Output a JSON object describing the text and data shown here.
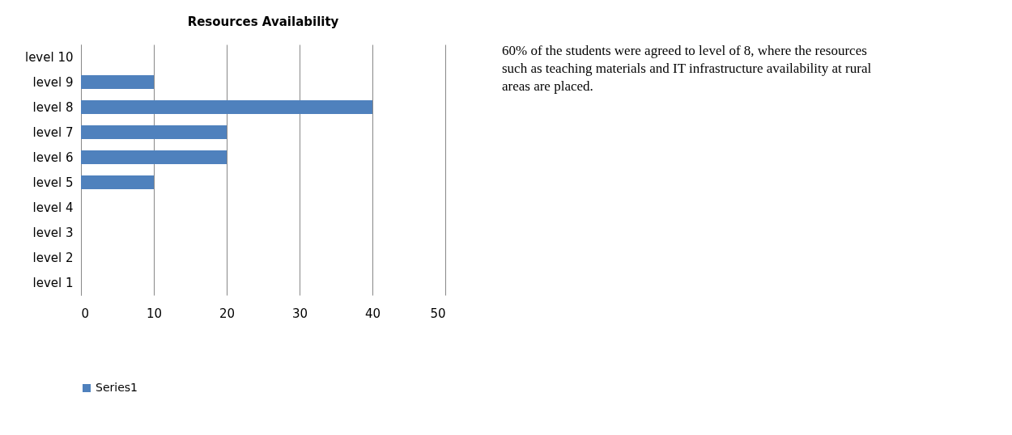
{
  "chart_data": {
    "type": "bar",
    "orientation": "horizontal",
    "title": "Resources Availability",
    "categories": [
      "level 10",
      "level 9",
      "level 8",
      "level 7",
      "level 6",
      "level 5",
      "level 4",
      "level 3",
      "level 2",
      "level 1"
    ],
    "series": [
      {
        "name": "Series1",
        "color": "#4f81bd",
        "values": [
          0,
          10,
          40,
          20,
          20,
          10,
          0,
          0,
          0,
          0
        ]
      }
    ],
    "xlim": [
      0,
      50
    ],
    "xticks": [
      0,
      10,
      20,
      30,
      40,
      50
    ],
    "grid": "x",
    "legend": "bottom",
    "annotations": [
      "60% of the students were agreed to level of 8, where the resources such as teaching materials and IT infrastructure availability at rural areas are placed."
    ]
  }
}
